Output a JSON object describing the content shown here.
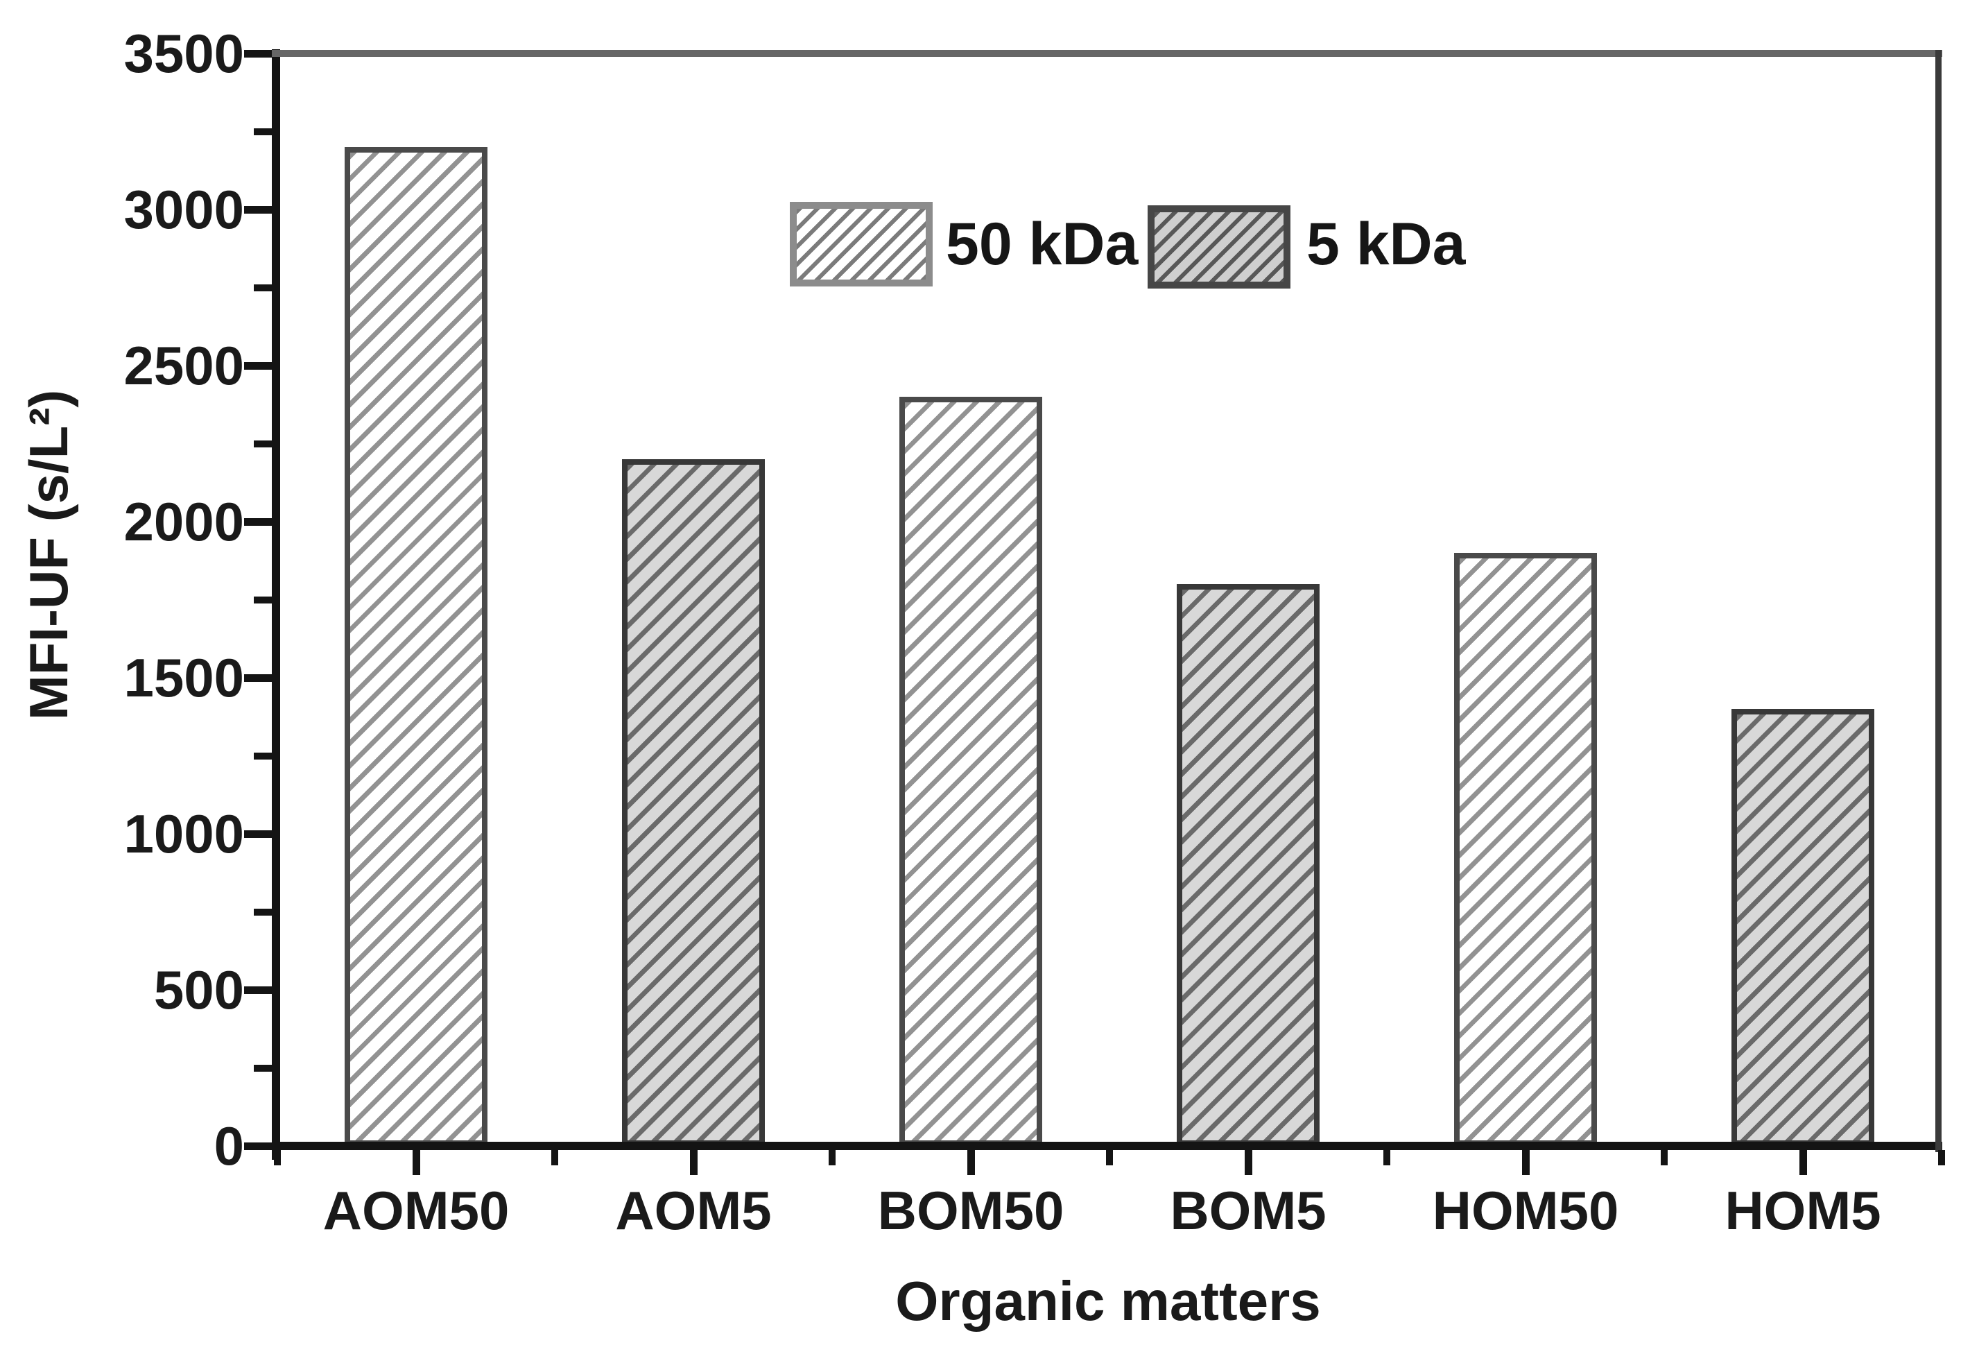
{
  "chart_data": {
    "type": "bar",
    "title": "",
    "xlabel": "Organic matters",
    "ylabel": "MFI-UF (s/L²)",
    "categories": [
      "AOM50",
      "AOM5",
      "BOM50",
      "BOM5",
      "HOM50",
      "HOM5"
    ],
    "values": [
      3200,
      2200,
      2400,
      1800,
      1900,
      1400
    ],
    "bar_series": [
      0,
      1,
      0,
      1,
      0,
      1
    ],
    "series": [
      {
        "name": "50 kDa",
        "style": "light-hatch",
        "fill": "#ffffff",
        "hatch": "#929292",
        "border": "#4a4a4a"
      },
      {
        "name": "5 kDa",
        "style": "dark-hatch",
        "fill": "#d8d8d8",
        "hatch": "#6a6a6a",
        "border": "#383838"
      }
    ],
    "ylim": [
      0,
      3500
    ],
    "ytick_step": 500,
    "yminor_step": 250,
    "ytick_labels": [
      "0",
      "500",
      "1000",
      "1500",
      "2000",
      "2500",
      "3000",
      "3500"
    ],
    "hatch_direction": "forward-slash",
    "grid": false,
    "legend_position": "top-center",
    "frame": "full-box",
    "tick_direction": "outward"
  }
}
